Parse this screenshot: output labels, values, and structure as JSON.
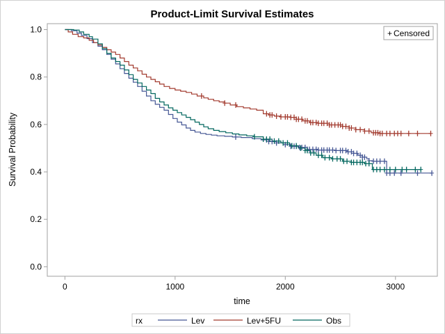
{
  "chart_data": {
    "type": "line",
    "subtype": "step",
    "title": "Product-Limit Survival Estimates",
    "xlabel": "time",
    "ylabel": "Survival Probability",
    "xlim": [
      -160,
      3380
    ],
    "ylim": [
      -0.04,
      1.025
    ],
    "xticks": [
      0,
      1000,
      2000,
      3000
    ],
    "xtick_labels": [
      "0",
      "1000",
      "2000",
      "3000"
    ],
    "yticks": [
      0.0,
      0.2,
      0.4,
      0.6,
      0.8,
      1.0
    ],
    "ytick_labels": [
      "0.0",
      "0.2",
      "0.4",
      "0.6",
      "0.8",
      "1.0"
    ],
    "grid": false,
    "censor_legend": {
      "symbol": "+",
      "label": "Censored",
      "placement": "top-right"
    },
    "legend": {
      "title": "rx",
      "placement": "bottom"
    },
    "series": [
      {
        "name": "Lev",
        "color": "#445694",
        "points": [
          [
            0,
            1.0
          ],
          [
            60,
            0.995
          ],
          [
            110,
            0.985
          ],
          [
            150,
            0.975
          ],
          [
            200,
            0.962
          ],
          [
            250,
            0.945
          ],
          [
            300,
            0.93
          ],
          [
            340,
            0.915
          ],
          [
            380,
            0.895
          ],
          [
            420,
            0.875
          ],
          [
            460,
            0.855
          ],
          [
            500,
            0.835
          ],
          [
            540,
            0.815
          ],
          [
            580,
            0.795
          ],
          [
            620,
            0.778
          ],
          [
            660,
            0.76
          ],
          [
            700,
            0.74
          ],
          [
            740,
            0.72
          ],
          [
            780,
            0.7
          ],
          [
            820,
            0.685
          ],
          [
            860,
            0.672
          ],
          [
            900,
            0.66
          ],
          [
            940,
            0.642
          ],
          [
            980,
            0.625
          ],
          [
            1020,
            0.61
          ],
          [
            1060,
            0.598
          ],
          [
            1100,
            0.585
          ],
          [
            1140,
            0.575
          ],
          [
            1180,
            0.568
          ],
          [
            1230,
            0.562
          ],
          [
            1280,
            0.558
          ],
          [
            1330,
            0.555
          ],
          [
            1380,
            0.552
          ],
          [
            1450,
            0.55
          ],
          [
            1520,
            0.547
          ],
          [
            1600,
            0.545
          ],
          [
            1700,
            0.54
          ],
          [
            1780,
            0.535
          ],
          [
            1850,
            0.528
          ],
          [
            1920,
            0.522
          ],
          [
            1980,
            0.515
          ],
          [
            2050,
            0.508
          ],
          [
            2120,
            0.503
          ],
          [
            2200,
            0.495
          ],
          [
            2300,
            0.492
          ],
          [
            2450,
            0.49
          ],
          [
            2560,
            0.485
          ],
          [
            2620,
            0.478
          ],
          [
            2660,
            0.47
          ],
          [
            2700,
            0.462
          ],
          [
            2740,
            0.455
          ],
          [
            2760,
            0.447
          ],
          [
            2790,
            0.445
          ],
          [
            2920,
            0.395
          ],
          [
            3330,
            0.395
          ]
        ],
        "censored_times": [
          1550,
          1830,
          1850,
          1880,
          1920,
          2000,
          2050,
          2080,
          2100,
          2130,
          2150,
          2180,
          2200,
          2220,
          2250,
          2280,
          2300,
          2330,
          2350,
          2380,
          2400,
          2430,
          2460,
          2500,
          2520,
          2550,
          2570,
          2600,
          2620,
          2650,
          2680,
          2700,
          2720,
          2760,
          2800,
          2830,
          2860,
          2900,
          2920,
          2950,
          2990,
          3050,
          3200,
          3330
        ]
      },
      {
        "name": "Lev+5FU",
        "color": "#A23A2E",
        "points": [
          [
            0,
            1.0
          ],
          [
            30,
            0.99
          ],
          [
            70,
            0.98
          ],
          [
            120,
            0.97
          ],
          [
            170,
            0.965
          ],
          [
            220,
            0.955
          ],
          [
            260,
            0.945
          ],
          [
            300,
            0.935
          ],
          [
            340,
            0.925
          ],
          [
            380,
            0.915
          ],
          [
            420,
            0.905
          ],
          [
            460,
            0.895
          ],
          [
            500,
            0.88
          ],
          [
            540,
            0.865
          ],
          [
            580,
            0.85
          ],
          [
            620,
            0.838
          ],
          [
            660,
            0.826
          ],
          [
            700,
            0.812
          ],
          [
            740,
            0.8
          ],
          [
            780,
            0.79
          ],
          [
            820,
            0.78
          ],
          [
            860,
            0.77
          ],
          [
            900,
            0.76
          ],
          [
            950,
            0.752
          ],
          [
            1000,
            0.745
          ],
          [
            1050,
            0.74
          ],
          [
            1100,
            0.735
          ],
          [
            1150,
            0.728
          ],
          [
            1200,
            0.72
          ],
          [
            1260,
            0.712
          ],
          [
            1300,
            0.706
          ],
          [
            1350,
            0.7
          ],
          [
            1400,
            0.695
          ],
          [
            1450,
            0.69
          ],
          [
            1500,
            0.682
          ],
          [
            1560,
            0.675
          ],
          [
            1620,
            0.67
          ],
          [
            1680,
            0.665
          ],
          [
            1740,
            0.66
          ],
          [
            1800,
            0.645
          ],
          [
            1850,
            0.64
          ],
          [
            1900,
            0.635
          ],
          [
            1960,
            0.632
          ],
          [
            2050,
            0.63
          ],
          [
            2100,
            0.622
          ],
          [
            2160,
            0.615
          ],
          [
            2220,
            0.608
          ],
          [
            2300,
            0.605
          ],
          [
            2400,
            0.598
          ],
          [
            2520,
            0.592
          ],
          [
            2580,
            0.585
          ],
          [
            2640,
            0.578
          ],
          [
            2720,
            0.572
          ],
          [
            2780,
            0.565
          ],
          [
            2860,
            0.562
          ],
          [
            3320,
            0.562
          ]
        ],
        "censored_times": [
          1240,
          1450,
          1550,
          1830,
          1860,
          1880,
          1920,
          1960,
          2000,
          2020,
          2050,
          2080,
          2100,
          2120,
          2150,
          2180,
          2200,
          2230,
          2250,
          2280,
          2300,
          2330,
          2350,
          2380,
          2400,
          2420,
          2450,
          2480,
          2500,
          2520,
          2550,
          2580,
          2600,
          2640,
          2680,
          2720,
          2760,
          2800,
          2820,
          2840,
          2860,
          2880,
          2920,
          2950,
          2990,
          3020,
          3050,
          3120,
          3200,
          3320
        ]
      },
      {
        "name": "Obs",
        "color": "#01665E",
        "points": [
          [
            0,
            1.0
          ],
          [
            80,
            0.998
          ],
          [
            130,
            0.99
          ],
          [
            170,
            0.98
          ],
          [
            220,
            0.97
          ],
          [
            250,
            0.96
          ],
          [
            300,
            0.94
          ],
          [
            340,
            0.92
          ],
          [
            380,
            0.9
          ],
          [
            420,
            0.88
          ],
          [
            460,
            0.865
          ],
          [
            500,
            0.85
          ],
          [
            540,
            0.83
          ],
          [
            580,
            0.81
          ],
          [
            620,
            0.79
          ],
          [
            660,
            0.775
          ],
          [
            700,
            0.76
          ],
          [
            740,
            0.745
          ],
          [
            780,
            0.73
          ],
          [
            820,
            0.71
          ],
          [
            860,
            0.695
          ],
          [
            900,
            0.682
          ],
          [
            940,
            0.67
          ],
          [
            980,
            0.66
          ],
          [
            1020,
            0.65
          ],
          [
            1060,
            0.64
          ],
          [
            1100,
            0.63
          ],
          [
            1140,
            0.62
          ],
          [
            1180,
            0.61
          ],
          [
            1220,
            0.6
          ],
          [
            1260,
            0.59
          ],
          [
            1300,
            0.582
          ],
          [
            1350,
            0.575
          ],
          [
            1400,
            0.57
          ],
          [
            1460,
            0.565
          ],
          [
            1520,
            0.56
          ],
          [
            1580,
            0.556
          ],
          [
            1650,
            0.552
          ],
          [
            1720,
            0.548
          ],
          [
            1800,
            0.538
          ],
          [
            1880,
            0.53
          ],
          [
            1960,
            0.522
          ],
          [
            2040,
            0.51
          ],
          [
            2120,
            0.5
          ],
          [
            2180,
            0.49
          ],
          [
            2230,
            0.48
          ],
          [
            2280,
            0.47
          ],
          [
            2340,
            0.46
          ],
          [
            2420,
            0.455
          ],
          [
            2520,
            0.445
          ],
          [
            2600,
            0.44
          ],
          [
            2720,
            0.435
          ],
          [
            2790,
            0.41
          ],
          [
            3230,
            0.41
          ]
        ],
        "censored_times": [
          1720,
          1800,
          1830,
          1860,
          1900,
          1940,
          1980,
          2020,
          2060,
          2100,
          2140,
          2180,
          2200,
          2230,
          2260,
          2300,
          2330,
          2360,
          2400,
          2430,
          2470,
          2500,
          2530,
          2560,
          2600,
          2620,
          2650,
          2680,
          2700,
          2730,
          2760,
          2800,
          2830,
          2860,
          2900,
          2950,
          3000,
          3060,
          3100,
          3180,
          3230
        ]
      }
    ]
  }
}
